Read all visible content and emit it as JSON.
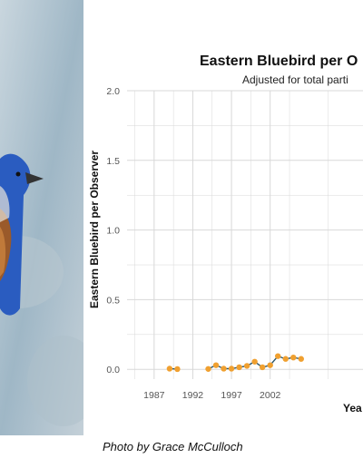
{
  "photo": {
    "subject": "bluebird-icon"
  },
  "credit": "Photo by Grace McCulloch",
  "colors": {
    "line": "#2e5668",
    "point": "#f0a030",
    "grid": "#d8d8d8",
    "sky": "#9fb7c6",
    "bird": "#2b5fc4"
  },
  "chart_data": {
    "type": "line",
    "title": "Eastern Bluebird per O",
    "subtitle": "Adjusted for total parti",
    "xlabel": "Yea",
    "ylabel": "Eastern Bluebird per Observer",
    "xlim": [
      1983.5,
      2014
    ],
    "ylim": [
      -0.07,
      2.0
    ],
    "xticks": [
      "1987",
      "1992",
      "1997",
      "2002"
    ],
    "yticks": [
      "0.0",
      "0.5",
      "1.0",
      "1.5",
      "2.0"
    ],
    "grid": true,
    "segments": [
      {
        "x": [
          1989,
          1990
        ],
        "y": [
          0.005,
          0.002
        ]
      },
      {
        "x": [
          1994,
          1995,
          1996,
          1997,
          1998,
          1999,
          2000,
          2001,
          2002,
          2003,
          2004,
          2005,
          2006
        ],
        "y": [
          0.003,
          0.03,
          0.005,
          0.005,
          0.015,
          0.025,
          0.055,
          0.015,
          0.03,
          0.095,
          0.075,
          0.085,
          0.075
        ]
      }
    ]
  }
}
